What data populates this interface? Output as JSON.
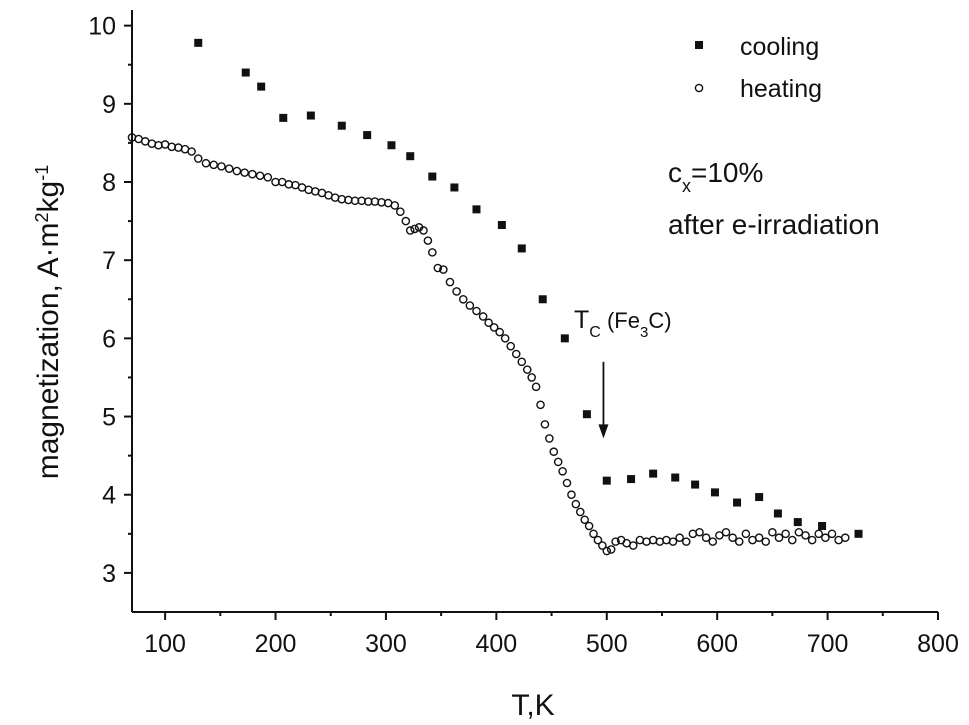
{
  "chart_data": {
    "type": "scatter",
    "xlabel": "T,K",
    "ylabel": "magnetization, A·m²kg⁻¹",
    "ylabel_parts": {
      "main": "magnetization, A·m",
      "sup1": "2",
      "mid": "kg",
      "sup2": "-1"
    },
    "xlim": [
      70,
      800
    ],
    "ylim": [
      2.5,
      10.2
    ],
    "xticks": [
      100,
      200,
      300,
      400,
      500,
      600,
      700,
      800
    ],
    "yticks": [
      3,
      4,
      5,
      6,
      7,
      8,
      9,
      10
    ],
    "grid": false,
    "legend_position": "top-right",
    "series": [
      {
        "name": "cooling",
        "marker": "filled-square",
        "color": "#111111",
        "x": [
          130,
          173,
          187,
          207,
          232,
          260,
          283,
          305,
          322,
          342,
          362,
          382,
          405,
          423,
          442,
          462,
          482,
          500,
          522,
          542,
          562,
          580,
          598,
          618,
          638,
          655,
          673,
          695,
          728
        ],
        "y": [
          9.78,
          9.4,
          9.22,
          8.82,
          8.85,
          8.72,
          8.6,
          8.47,
          8.33,
          8.07,
          7.93,
          7.65,
          7.45,
          7.15,
          6.5,
          6.0,
          5.03,
          4.18,
          4.2,
          4.27,
          4.22,
          4.13,
          4.03,
          3.9,
          3.97,
          3.76,
          3.65,
          3.6,
          3.5
        ]
      },
      {
        "name": "heating",
        "marker": "open-circle",
        "color": "#111111",
        "x": [
          70,
          76,
          82,
          88,
          94,
          100,
          106,
          112,
          118,
          124,
          130,
          137,
          144,
          151,
          158,
          165,
          172,
          179,
          186,
          193,
          200,
          206,
          212,
          218,
          224,
          230,
          236,
          242,
          248,
          254,
          260,
          266,
          272,
          278,
          284,
          290,
          296,
          302,
          308,
          313,
          318,
          322,
          326,
          330,
          334,
          338,
          342,
          347,
          352,
          358,
          364,
          370,
          376,
          382,
          388,
          393,
          398,
          403,
          408,
          413,
          418,
          423,
          428,
          432,
          436,
          440,
          444,
          448,
          452,
          456,
          460,
          464,
          468,
          472,
          476,
          480,
          484,
          488,
          492,
          496,
          500,
          504,
          508,
          513,
          518,
          524,
          530,
          536,
          542,
          548,
          554,
          560,
          566,
          572,
          578,
          584,
          590,
          596,
          602,
          608,
          614,
          620,
          626,
          632,
          638,
          644,
          650,
          656,
          662,
          668,
          674,
          680,
          686,
          692,
          698,
          704,
          710,
          716
        ],
        "y": [
          8.57,
          8.55,
          8.52,
          8.49,
          8.47,
          8.48,
          8.45,
          8.44,
          8.42,
          8.39,
          8.3,
          8.24,
          8.22,
          8.2,
          8.17,
          8.14,
          8.12,
          8.1,
          8.08,
          8.06,
          8.0,
          8.0,
          7.97,
          7.96,
          7.93,
          7.9,
          7.88,
          7.86,
          7.83,
          7.8,
          7.78,
          7.77,
          7.76,
          7.76,
          7.75,
          7.75,
          7.74,
          7.73,
          7.7,
          7.62,
          7.5,
          7.38,
          7.4,
          7.42,
          7.38,
          7.25,
          7.1,
          6.9,
          6.88,
          6.72,
          6.6,
          6.5,
          6.42,
          6.35,
          6.28,
          6.2,
          6.14,
          6.08,
          6.0,
          5.9,
          5.8,
          5.7,
          5.6,
          5.5,
          5.38,
          5.15,
          4.9,
          4.72,
          4.55,
          4.42,
          4.3,
          4.15,
          4.0,
          3.88,
          3.78,
          3.68,
          3.6,
          3.5,
          3.42,
          3.35,
          3.28,
          3.3,
          3.4,
          3.42,
          3.38,
          3.35,
          3.42,
          3.4,
          3.42,
          3.4,
          3.42,
          3.4,
          3.45,
          3.4,
          3.5,
          3.52,
          3.45,
          3.4,
          3.48,
          3.52,
          3.45,
          3.4,
          3.5,
          3.42,
          3.45,
          3.4,
          3.52,
          3.45,
          3.5,
          3.42,
          3.52,
          3.48,
          3.42,
          3.5,
          3.45,
          3.5,
          3.42,
          3.45
        ]
      }
    ],
    "annotations": {
      "cx_label": {
        "base": "c",
        "sub": "x",
        "rest": "=10%"
      },
      "condition": "after e-irradiation",
      "tc_label": {
        "base": "T",
        "sub1": "C",
        "mid": " (Fe",
        "sub2": "3",
        "end": "C)"
      },
      "tc_arrow_x": 497,
      "tc_arrow_y_from": 5.7,
      "tc_arrow_y_to": 4.72
    }
  }
}
